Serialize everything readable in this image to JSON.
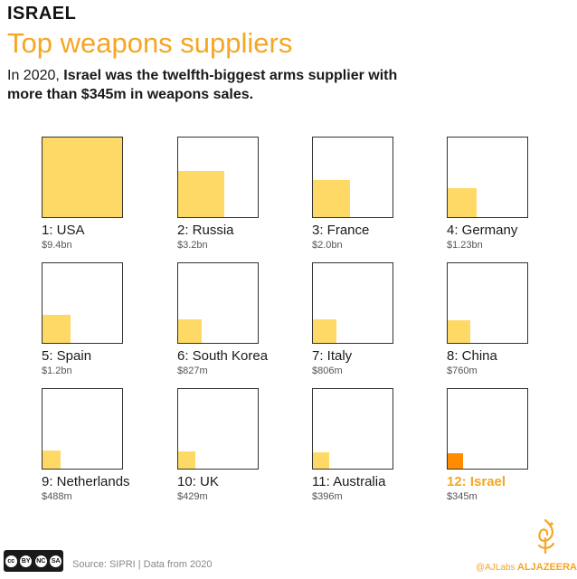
{
  "header": {
    "kicker": "ISRAEL",
    "title": "Top weapons suppliers",
    "subtitle_lead": "In 2020, ",
    "subtitle_bold": "Israel was the twelfth-biggest arms supplier with more than $345m in weapons sales."
  },
  "chart_data": {
    "type": "area",
    "title": "Top weapons suppliers",
    "unit": "US$",
    "items": [
      {
        "rank": 1,
        "label": "1: USA",
        "value": 9.4,
        "value_label": "$9.4bn"
      },
      {
        "rank": 2,
        "label": "2: Russia",
        "value": 3.2,
        "value_label": "$3.2bn"
      },
      {
        "rank": 3,
        "label": "3: France",
        "value": 2.0,
        "value_label": "$2.0bn"
      },
      {
        "rank": 4,
        "label": "4: Germany",
        "value": 1.23,
        "value_label": "$1.23bn"
      },
      {
        "rank": 5,
        "label": "5: Spain",
        "value": 1.2,
        "value_label": "$1.2bn"
      },
      {
        "rank": 6,
        "label": "6: South Korea",
        "value": 0.827,
        "value_label": "$827m"
      },
      {
        "rank": 7,
        "label": "7: Italy",
        "value": 0.806,
        "value_label": "$806m"
      },
      {
        "rank": 8,
        "label": "8: China",
        "value": 0.76,
        "value_label": "$760m"
      },
      {
        "rank": 9,
        "label": "9: Netherlands",
        "value": 0.488,
        "value_label": "$488m"
      },
      {
        "rank": 10,
        "label": "10: UK",
        "value": 0.429,
        "value_label": "$429m"
      },
      {
        "rank": 11,
        "label": "11: Australia",
        "value": 0.396,
        "value_label": "$396m"
      },
      {
        "rank": 12,
        "label": "12: Israel",
        "value": 0.345,
        "value_label": "$345m",
        "highlight": true
      }
    ],
    "colors": {
      "fill": "#ffd966",
      "highlight_fill": "#ff8c00",
      "highlight_text": "#f5a623"
    }
  },
  "footer": {
    "license": [
      "cc",
      "BY",
      "NC",
      "SA"
    ],
    "source": "Source: SIPRI | Data from 2020",
    "credit": "@AJLabs",
    "brand": "ALJAZEERA"
  }
}
